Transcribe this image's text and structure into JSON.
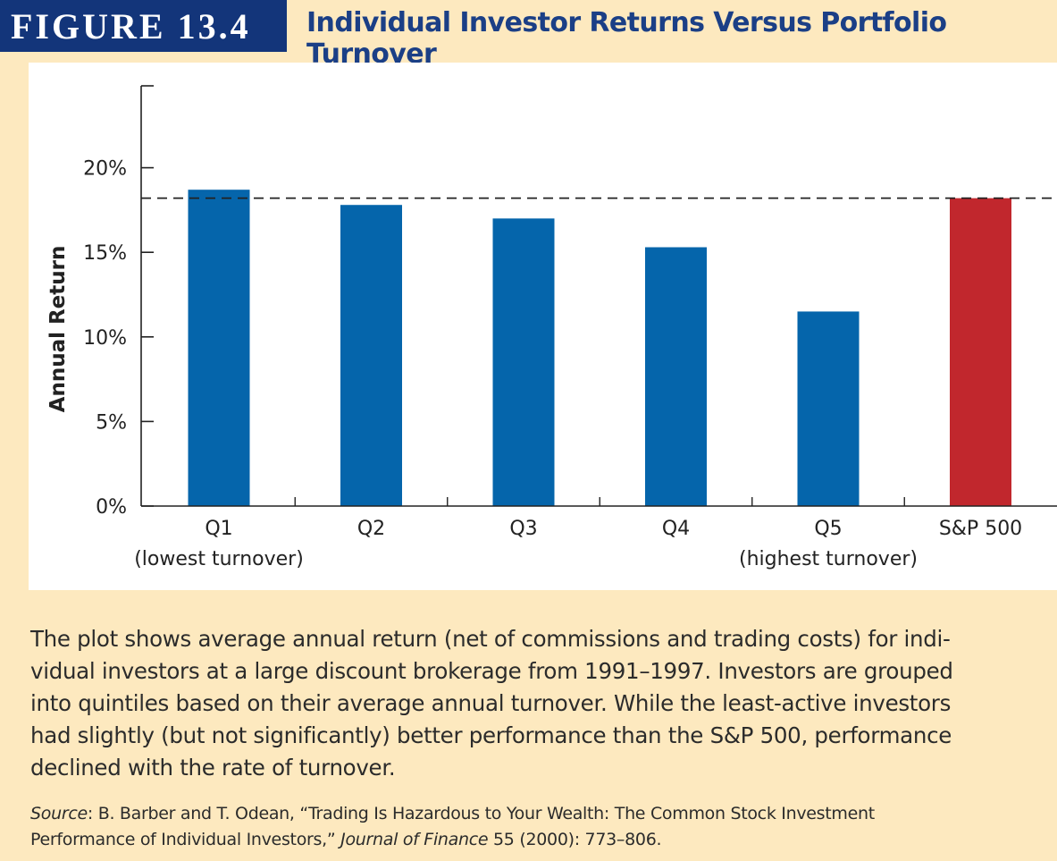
{
  "figure": {
    "label": "FIGURE 13.4",
    "title": "Individual Investor Returns Versus Portfolio Turnover"
  },
  "colors": {
    "header_bg": "#13357a",
    "title_text": "#1b3f86",
    "page_bg": "#fde9bf",
    "bar_blue": "#0565ab",
    "bar_red": "#c1272d"
  },
  "chart_data": {
    "type": "bar",
    "categories": [
      "Q1",
      "Q2",
      "Q3",
      "Q4",
      "Q5",
      "S&P 500"
    ],
    "sublabels": [
      "(lowest turnover)",
      "",
      "",
      "",
      "(highest turnover)",
      ""
    ],
    "values": [
      18.7,
      17.8,
      17.0,
      15.3,
      11.5,
      18.2
    ],
    "bar_colors": [
      "#0565ab",
      "#0565ab",
      "#0565ab",
      "#0565ab",
      "#0565ab",
      "#c1272d"
    ],
    "ylabel": "Annual Return",
    "xlabel": "",
    "title": "",
    "ylim": [
      0,
      25
    ],
    "yticks": [
      0,
      5,
      10,
      15,
      20
    ],
    "ytick_labels": [
      "0%",
      "5%",
      "10%",
      "15%",
      "20%"
    ],
    "reference_line": {
      "value": 18.2,
      "style": "dashed"
    },
    "grid": false
  },
  "caption": {
    "lines": [
      "The plot shows average annual return (net of commissions and trading costs) for indi-",
      "vidual investors at a large discount brokerage from 1991–1997. Investors are grouped",
      "into quintiles based on their average annual turnover. While the least-active investors",
      "had slightly (but not significantly) better performance than the S&P 500, performance",
      "declined with the rate of turnover."
    ]
  },
  "source": {
    "label": "Source",
    "text1": ": B. Barber and T. Odean, “Trading Is Hazardous to Your Wealth: The Common Stock Investment",
    "text2": "Performance of Individual Investors,”",
    "journal": "Journal of Finance",
    "text3": " 55 (2000): 773–806."
  }
}
